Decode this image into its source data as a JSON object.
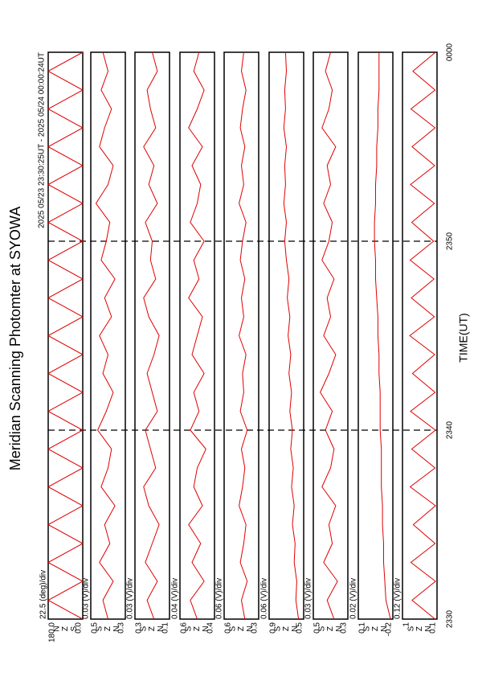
{
  "header": {
    "title": "Meridian Scanning Photomter at SYOWA",
    "subtitle": "2025 05/23 23:30:25UT - 2025 05/24 00:00:24UT",
    "x_label": "TIME(UT)",
    "xlim": [
      0,
      30
    ],
    "xticks": [
      {
        "value": 0,
        "label": "2330"
      },
      {
        "value": 10,
        "label": "2340"
      },
      {
        "value": 20,
        "label": "2350"
      },
      {
        "value": 30,
        "label": "0000"
      }
    ]
  },
  "chart_data": [
    {
      "type": "line",
      "scale": "22.5 (deg)/div",
      "color": "#e00000",
      "ylim": [
        0,
        180
      ],
      "yticks": [
        {
          "value": 180,
          "label": "180.0"
        },
        {
          "value": 0,
          "label": "0.0"
        }
      ],
      "markers": [
        "N",
        "Z",
        "S"
      ],
      "x": [
        0,
        1,
        2,
        3,
        4,
        5,
        6,
        7,
        8,
        9,
        10,
        11,
        12,
        13,
        14,
        15,
        16,
        17,
        18,
        19,
        20,
        21,
        22,
        23,
        24,
        25,
        26,
        27,
        28,
        29,
        30
      ],
      "values": [
        0,
        180,
        0,
        180,
        0,
        180,
        0,
        180,
        0,
        180,
        0,
        180,
        0,
        180,
        0,
        180,
        0,
        180,
        0,
        180,
        0,
        180,
        0,
        180,
        0,
        180,
        0,
        180,
        0,
        180,
        0
      ]
    },
    {
      "type": "line",
      "scale": "0.03 (V)/div",
      "color": "#e00000",
      "ylim": [
        0.3,
        0.5
      ],
      "yticks": [
        0.5,
        0.3
      ],
      "markers": [
        "S",
        "Z",
        "N"
      ],
      "x": [
        0,
        1,
        2,
        3,
        4,
        5,
        6,
        7,
        8,
        9,
        10,
        11,
        12,
        13,
        14,
        15,
        16,
        17,
        18,
        19,
        20,
        21,
        22,
        23,
        24,
        25,
        26,
        27,
        28,
        29,
        30
      ],
      "values": [
        0.4,
        0.43,
        0.37,
        0.45,
        0.39,
        0.42,
        0.36,
        0.44,
        0.4,
        0.38,
        0.46,
        0.41,
        0.37,
        0.43,
        0.4,
        0.45,
        0.38,
        0.42,
        0.36,
        0.44,
        0.41,
        0.39,
        0.47,
        0.4,
        0.37,
        0.45,
        0.42,
        0.38,
        0.44,
        0.4,
        0.43
      ]
    },
    {
      "type": "line",
      "scale": "0.03 (V)/div",
      "color": "#e00000",
      "ylim": [
        0.1,
        0.3
      ],
      "yticks": [
        0.3,
        0.1
      ],
      "markers": [
        "S",
        "Z",
        "N"
      ],
      "x": [
        0,
        1,
        2,
        3,
        4,
        5,
        6,
        7,
        8,
        9,
        10,
        11,
        12,
        13,
        14,
        15,
        16,
        17,
        18,
        19,
        20,
        21,
        22,
        23,
        24,
        25,
        26,
        27,
        28,
        29,
        30
      ],
      "values": [
        0.19,
        0.23,
        0.17,
        0.24,
        0.2,
        0.16,
        0.22,
        0.25,
        0.18,
        0.21,
        0.24,
        0.17,
        0.2,
        0.23,
        0.19,
        0.16,
        0.22,
        0.25,
        0.18,
        0.21,
        0.2,
        0.24,
        0.17,
        0.22,
        0.19,
        0.25,
        0.18,
        0.21,
        0.23,
        0.17,
        0.2
      ]
    },
    {
      "type": "line",
      "scale": "0.04 (V)/div",
      "color": "#e00000",
      "ylim": [
        0.4,
        0.6
      ],
      "yticks": [
        0.6,
        0.4
      ],
      "markers": [
        "S",
        "Z",
        "N"
      ],
      "x": [
        0,
        1,
        2,
        3,
        4,
        5,
        6,
        7,
        8,
        9,
        10,
        11,
        12,
        13,
        14,
        15,
        16,
        17,
        18,
        19,
        20,
        21,
        22,
        23,
        24,
        25,
        26,
        27,
        28,
        29,
        30
      ],
      "values": [
        0.5,
        0.54,
        0.46,
        0.53,
        0.48,
        0.55,
        0.47,
        0.52,
        0.5,
        0.45,
        0.54,
        0.49,
        0.52,
        0.46,
        0.53,
        0.5,
        0.47,
        0.55,
        0.49,
        0.52,
        0.46,
        0.54,
        0.5,
        0.48,
        0.53,
        0.47,
        0.55,
        0.5,
        0.46,
        0.52,
        0.49
      ]
    },
    {
      "type": "line",
      "scale": "0.06 (V)/div",
      "color": "#e00000",
      "ylim": [
        0.3,
        0.6
      ],
      "yticks": [
        0.6,
        0.3
      ],
      "markers": [
        "S",
        "Z",
        "N"
      ],
      "x": [
        0,
        1,
        2,
        3,
        4,
        5,
        6,
        7,
        8,
        9,
        10,
        11,
        12,
        13,
        14,
        15,
        16,
        17,
        18,
        19,
        20,
        21,
        22,
        23,
        24,
        25,
        26,
        27,
        28,
        29,
        30
      ],
      "values": [
        0.42,
        0.45,
        0.4,
        0.46,
        0.43,
        0.41,
        0.47,
        0.44,
        0.42,
        0.45,
        0.4,
        0.46,
        0.43,
        0.44,
        0.41,
        0.47,
        0.43,
        0.45,
        0.42,
        0.46,
        0.44,
        0.41,
        0.47,
        0.43,
        0.45,
        0.42,
        0.46,
        0.44,
        0.41,
        0.45,
        0.43
      ]
    },
    {
      "type": "line",
      "scale": "0.06 (V)/div",
      "color": "#e00000",
      "ylim": [
        0.5,
        0.9
      ],
      "yticks": [
        0.9,
        0.5
      ],
      "markers": [
        "S",
        "Z",
        "N"
      ],
      "x": [
        0,
        1,
        2,
        3,
        4,
        5,
        6,
        7,
        8,
        9,
        10,
        11,
        12,
        13,
        14,
        15,
        16,
        17,
        18,
        19,
        20,
        21,
        22,
        23,
        24,
        25,
        26,
        27,
        28,
        29,
        30
      ],
      "values": [
        0.56,
        0.59,
        0.58,
        0.61,
        0.6,
        0.63,
        0.61,
        0.64,
        0.62,
        0.65,
        0.63,
        0.66,
        0.64,
        0.67,
        0.65,
        0.68,
        0.66,
        0.69,
        0.67,
        0.7,
        0.72,
        0.7,
        0.73,
        0.71,
        0.72,
        0.7,
        0.73,
        0.71,
        0.72,
        0.7,
        0.71
      ]
    },
    {
      "type": "line",
      "scale": "0.03 (V)/div",
      "color": "#e00000",
      "ylim": [
        0.3,
        0.5
      ],
      "yticks": [
        0.5,
        0.3
      ],
      "markers": [
        "S",
        "Z",
        "N"
      ],
      "x": [
        0,
        1,
        2,
        3,
        4,
        5,
        6,
        7,
        8,
        9,
        10,
        11,
        12,
        13,
        14,
        15,
        16,
        17,
        18,
        19,
        20,
        21,
        22,
        23,
        24,
        25,
        26,
        27,
        28,
        29,
        30
      ],
      "values": [
        0.38,
        0.42,
        0.36,
        0.44,
        0.39,
        0.41,
        0.37,
        0.45,
        0.4,
        0.38,
        0.43,
        0.39,
        0.46,
        0.41,
        0.37,
        0.44,
        0.4,
        0.42,
        0.38,
        0.45,
        0.41,
        0.39,
        0.44,
        0.4,
        0.42,
        0.37,
        0.45,
        0.41,
        0.39,
        0.43,
        0.4
      ]
    },
    {
      "type": "line",
      "scale": "0.02 (V)/div",
      "color": "#e00000",
      "ylim": [
        -0.2,
        0.1
      ],
      "yticks": [
        0.1,
        -0.2
      ],
      "markers": [
        "S",
        "Z",
        "N"
      ],
      "x": [
        0,
        1,
        2,
        3,
        4,
        5,
        6,
        7,
        8,
        9,
        10,
        11,
        12,
        13,
        14,
        15,
        16,
        17,
        18,
        19,
        20,
        21,
        22,
        23,
        24,
        25,
        26,
        27,
        28,
        29,
        30
      ],
      "values": [
        -0.18,
        -0.14,
        -0.13,
        -0.12,
        -0.12,
        -0.11,
        -0.11,
        -0.1,
        -0.1,
        -0.1,
        -0.09,
        -0.09,
        -0.09,
        -0.08,
        -0.08,
        -0.07,
        -0.07,
        -0.06,
        -0.05,
        -0.05,
        -0.04,
        -0.04,
        -0.05,
        -0.05,
        -0.06,
        -0.06,
        -0.07,
        -0.07,
        -0.08,
        -0.08,
        -0.08
      ]
    },
    {
      "type": "line",
      "scale": "0.12 (V)/div",
      "color": "#e00000",
      "ylim": [
        0.1,
        1.0
      ],
      "yticks": [
        1.0,
        0.1
      ],
      "markers": [
        "S",
        "Z",
        "N"
      ],
      "x": [
        0,
        1,
        2,
        3,
        4,
        5,
        6,
        7,
        8,
        9,
        10,
        11,
        12,
        13,
        14,
        15,
        16,
        17,
        18,
        19,
        20,
        21,
        22,
        23,
        24,
        25,
        26,
        27,
        28,
        29,
        30
      ],
      "values": [
        0.15,
        0.75,
        0.14,
        0.78,
        0.15,
        0.72,
        0.14,
        0.8,
        0.15,
        0.76,
        0.14,
        0.79,
        0.15,
        0.74,
        0.16,
        0.81,
        0.17,
        0.77,
        0.18,
        0.8,
        0.19,
        0.76,
        0.17,
        0.79,
        0.16,
        0.75,
        0.15,
        0.78,
        0.15,
        0.73,
        0.14
      ]
    }
  ]
}
